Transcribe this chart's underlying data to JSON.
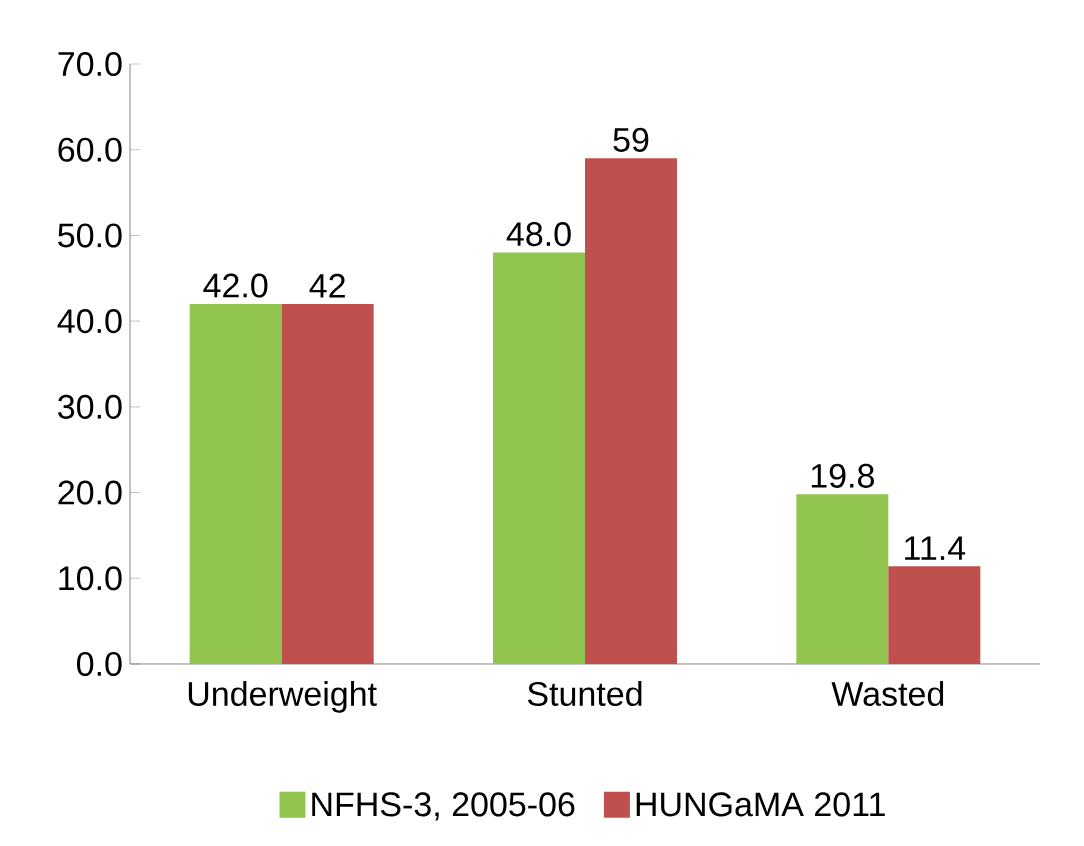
{
  "chart_data": {
    "type": "bar",
    "categories": [
      "Underweight",
      "Stunted",
      "Wasted"
    ],
    "series": [
      {
        "name": "NFHS-3, 2005-06",
        "color": "#92c550",
        "values": [
          42.0,
          48.0,
          19.8
        ],
        "value_labels": [
          "42.0",
          "48.0",
          "19.8"
        ]
      },
      {
        "name": "HUNGaMA 2011",
        "color": "#c0504d",
        "values": [
          42,
          59,
          11.4
        ],
        "value_labels": [
          "42",
          "59",
          "11.4"
        ]
      }
    ],
    "ylim": [
      0,
      70
    ],
    "yticks": [
      {
        "value": 0,
        "label": "0.0"
      },
      {
        "value": 10,
        "label": "10.0"
      },
      {
        "value": 20,
        "label": "20.0"
      },
      {
        "value": 30,
        "label": "30.0"
      },
      {
        "value": 40,
        "label": "40.0"
      },
      {
        "value": 50,
        "label": "50.0"
      },
      {
        "value": 60,
        "label": "60.0"
      },
      {
        "value": 70,
        "label": "70.0"
      }
    ],
    "legend": "bottom",
    "grid": false
  }
}
